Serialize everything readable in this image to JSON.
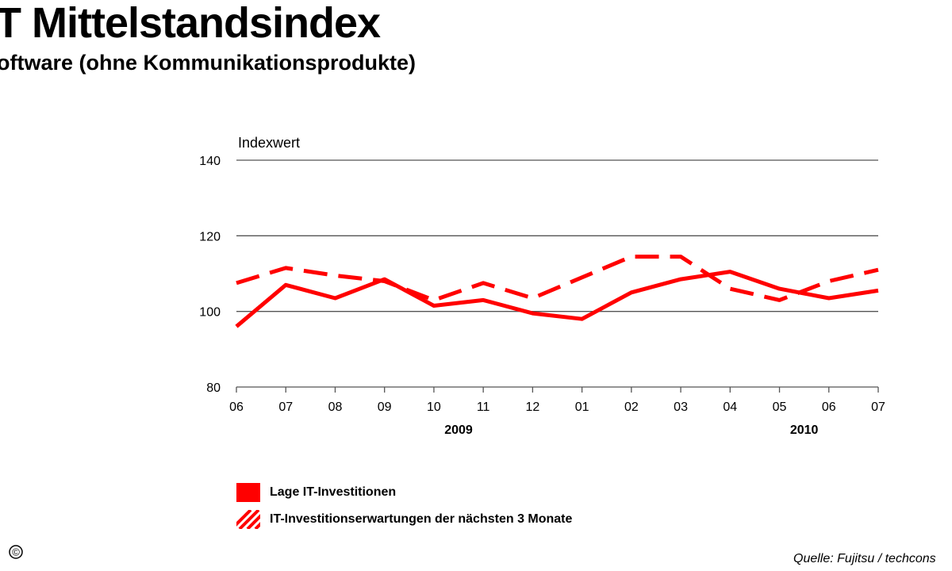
{
  "page": {
    "title": "T Mittelstandsindex",
    "subtitle": "oftware (ohne Kommunikationsprodukte)",
    "source": "Quelle: Fujitsu / techcons",
    "copyright_symbol": "©"
  },
  "chart_data": {
    "type": "line",
    "title": "T Mittelstandsindex",
    "subtitle": "oftware (ohne Kommunikationsprodukte)",
    "ylabel": "Indexwert",
    "xlabel": "",
    "ylim": [
      80,
      140
    ],
    "yticks": [
      80,
      100,
      120,
      140
    ],
    "grid": true,
    "categories": [
      "06",
      "07",
      "08",
      "09",
      "10",
      "11",
      "12",
      "01",
      "02",
      "03",
      "04",
      "05",
      "06",
      "07"
    ],
    "year_labels": [
      {
        "label": "2009",
        "category_index": 4.5
      },
      {
        "label": "2010",
        "category_index": 11.5
      }
    ],
    "series": [
      {
        "name": "Lage IT-Investitionen",
        "style": "solid",
        "color": "#ff0000",
        "values": [
          96,
          107,
          103.5,
          108.5,
          101.5,
          103,
          99.5,
          98,
          105,
          108.5,
          110.5,
          106,
          103.5,
          105.5
        ]
      },
      {
        "name": "IT-Investitionserwartungen der nächsten 3 Monate",
        "style": "dashed",
        "color": "#ff0000",
        "values": [
          107.5,
          111.5,
          109.5,
          108,
          103,
          107.5,
          103.5,
          109,
          114.5,
          114.5,
          106,
          103,
          108,
          111
        ]
      }
    ],
    "legend_position": "bottom-left"
  }
}
